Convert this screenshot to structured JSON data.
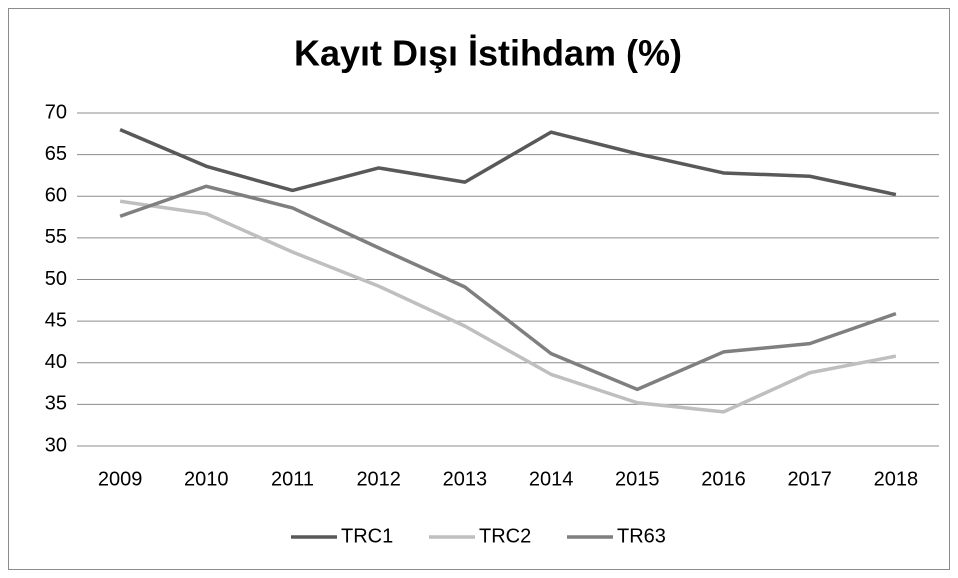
{
  "chart_data": {
    "type": "line",
    "title": "Kayıt Dışı İstihdam (%)",
    "categories": [
      "2009",
      "2010",
      "2011",
      "2012",
      "2013",
      "2014",
      "2015",
      "2016",
      "2017",
      "2018"
    ],
    "series": [
      {
        "name": "TRC1",
        "color": "#595959",
        "values": [
          68.0,
          63.6,
          60.7,
          63.4,
          61.7,
          67.7,
          65.1,
          62.8,
          62.4,
          60.2
        ]
      },
      {
        "name": "TRC2",
        "color": "#bfbfbf",
        "values": [
          59.4,
          57.9,
          53.3,
          49.2,
          44.4,
          38.6,
          35.2,
          34.1,
          38.8,
          40.8
        ]
      },
      {
        "name": "TR63",
        "color": "#7f7f7f",
        "values": [
          57.6,
          61.2,
          58.6,
          53.8,
          49.1,
          41.1,
          36.8,
          41.3,
          42.3,
          45.9
        ]
      }
    ],
    "ylim": [
      30,
      70
    ],
    "yticks": [
      30,
      35,
      40,
      45,
      50,
      55,
      60,
      65,
      70
    ],
    "grid": true,
    "legend": "bottom"
  }
}
